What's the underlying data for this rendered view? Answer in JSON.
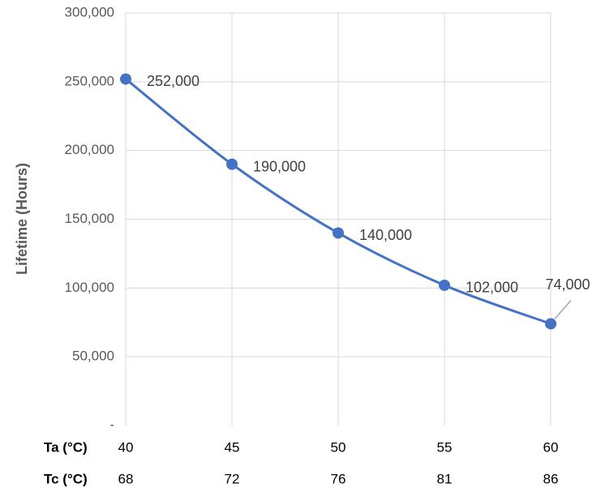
{
  "chart_data": {
    "type": "line",
    "ylabel": "Lifetime (Hours)",
    "ylim": [
      0,
      300000
    ],
    "yticks": [
      0,
      50000,
      100000,
      150000,
      200000,
      250000,
      300000
    ],
    "ytick_labels": [
      "-",
      "50,000",
      "100,000",
      "150,000",
      "200,000",
      "250,000",
      "300,000"
    ],
    "grid": true,
    "smooth": true,
    "rows": [
      {
        "name": "Ta (°C)",
        "values": [
          "40",
          "45",
          "50",
          "55",
          "60"
        ]
      },
      {
        "name": "Tc (°C)",
        "values": [
          "68",
          "72",
          "76",
          "81",
          "86"
        ]
      }
    ],
    "x": [
      40,
      45,
      50,
      55,
      60
    ],
    "series": [
      {
        "values": [
          252000,
          190000,
          140000,
          102000,
          74000
        ],
        "data_labels": [
          "252,000",
          "190,000",
          "140,000",
          "102,000",
          "74,000"
        ]
      }
    ],
    "colors": {
      "line": "#4472C4",
      "grid": "#D9D9D9",
      "leader": "#A6A6A6"
    }
  }
}
